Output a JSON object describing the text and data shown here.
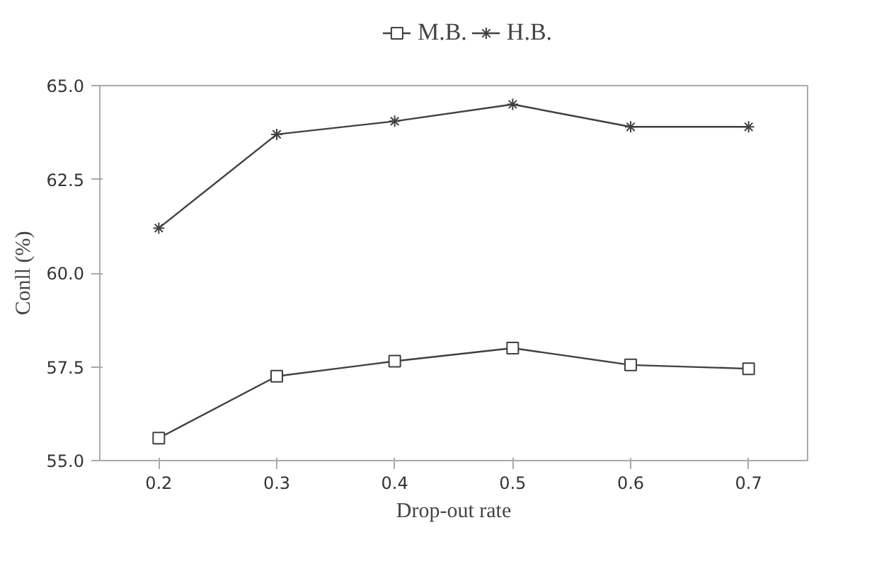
{
  "chart_data": {
    "type": "line",
    "xlabel": "Drop-out rate",
    "ylabel": "Conll (%)",
    "x": [
      0.2,
      0.3,
      0.4,
      0.5,
      0.6,
      0.7
    ],
    "series": [
      {
        "name": "M.B.",
        "color": "#404040",
        "marker": "square",
        "values": [
          55.6,
          57.25,
          57.65,
          58.0,
          57.55,
          57.45
        ]
      },
      {
        "name": "H.B.",
        "color": "#404040",
        "marker": "cross",
        "values": [
          61.2,
          63.7,
          64.05,
          64.5,
          63.9,
          63.9
        ]
      }
    ],
    "xlim": [
      0.15,
      0.75
    ],
    "xticks": [
      0.2,
      0.3,
      0.4,
      0.5,
      0.6,
      0.7
    ],
    "ylim": [
      55.0,
      65.0
    ],
    "yticks": [
      {
        "value": 55,
        "label": "55.0"
      },
      {
        "value": 57.5,
        "label": "57.5"
      },
      {
        "value": 60,
        "label": "60.0"
      },
      {
        "value": 62.5,
        "label": "62.5"
      },
      {
        "value": 65,
        "label": "65.0"
      }
    ],
    "grid": false,
    "legend": "top",
    "line_style": "solid"
  }
}
